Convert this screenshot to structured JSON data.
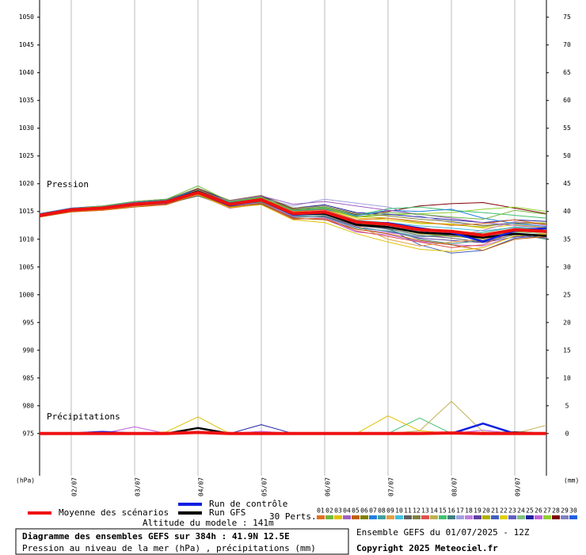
{
  "chart_data": {
    "type": "line",
    "title": "Diagramme des ensembles GEFS sur 384h : 41.9N 12.5E",
    "subtitle": "Pression au niveau de la mer (hPa) , précipitations (mm)",
    "run_info": "Ensemble GEFS du 01/07/2025 - 12Z",
    "copyright": "Copyright 2025 Meteociel.fr",
    "altitude": "Altitude du modele : 141m",
    "pressure_label": "Pression",
    "precip_label": "Précipitations",
    "y_label": "(hPa)",
    "y2_label": "(mm)",
    "perts_label": "30 Perts.",
    "x": [
      1.5,
      2,
      2.5,
      3,
      3.5,
      4,
      4.5,
      5,
      5.5,
      6,
      6.5,
      7,
      7.5,
      8,
      8.5,
      9,
      9.5
    ],
    "xlim": [
      1.5,
      9.5
    ],
    "xticks": [
      {
        "value": 2,
        "label": "02/07"
      },
      {
        "value": 3,
        "label": "03/07"
      },
      {
        "value": 4,
        "label": "04/07"
      },
      {
        "value": 5,
        "label": "05/07"
      },
      {
        "value": 6,
        "label": "06/07"
      },
      {
        "value": 7,
        "label": "07/07"
      },
      {
        "value": 8,
        "label": "08/07"
      },
      {
        "value": 9,
        "label": "09/07"
      }
    ],
    "ylim": [
      967.4,
      1053.1
    ],
    "yticks": [
      975,
      980,
      985,
      990,
      995,
      1000,
      1005,
      1010,
      1015,
      1020,
      1025,
      1030,
      1035,
      1040,
      1045,
      1050
    ],
    "y2lim": [
      -7.6,
      78.1
    ],
    "y2ticks": [
      0,
      5,
      10,
      15,
      20,
      25,
      30,
      35,
      40,
      45,
      50,
      55,
      60,
      65,
      70,
      75
    ],
    "grid": true,
    "series": [
      {
        "name": "Moyenne des scénarios",
        "color": "#ee1111",
        "width": 4,
        "values": [
          1014.3,
          1015.3,
          1015.6,
          1016.3,
          1016.7,
          1018.4,
          1016.3,
          1017.1,
          1014.6,
          1014.9,
          1013.1,
          1012.7,
          1011.7,
          1011.4,
          1010.7,
          1011.7,
          1011.4
        ],
        "precip": [
          0,
          0,
          0,
          0,
          0,
          0.2,
          0,
          0,
          0,
          0,
          0,
          0,
          0,
          0.1,
          0,
          0,
          0
        ]
      },
      {
        "name": "Run de contrôle",
        "color": "#1020e0",
        "width": 2.5,
        "values": [
          1014.3,
          1015.3,
          1015.6,
          1016.2,
          1016.6,
          1018.3,
          1016.1,
          1017.0,
          1014.4,
          1014.8,
          1013.0,
          1012.9,
          1012.0,
          1011.2,
          1009.6,
          1011.5,
          1012.0
        ],
        "precip": [
          0,
          0,
          0.3,
          0,
          0,
          0.2,
          0,
          0.1,
          0,
          0,
          0,
          0,
          0.1,
          0,
          1.8,
          0,
          0
        ]
      },
      {
        "name": "Run GFS",
        "color": "#000000",
        "width": 2.5,
        "values": [
          1014.2,
          1015.2,
          1015.6,
          1016.4,
          1016.8,
          1018.6,
          1016.4,
          1017.2,
          1014.5,
          1014.6,
          1012.6,
          1012.2,
          1011.2,
          1010.9,
          1010.3,
          1011.0,
          1010.6
        ],
        "precip": [
          0,
          0,
          0,
          0,
          0,
          1.0,
          0,
          0,
          0,
          0,
          0,
          0,
          0,
          0,
          0,
          0.2,
          0
        ]
      },
      {
        "name": "01",
        "color": "#e07020",
        "width": 1,
        "values": [
          1014.1,
          1015.0,
          1015.2,
          1016.0,
          1016.2,
          1019.0,
          1016.5,
          1017.4,
          1015.0,
          1015.3,
          1013.5,
          1013.8,
          1013.2,
          1012.5,
          1012.8,
          1013.5,
          1012.6
        ]
      },
      {
        "name": "02",
        "color": "#70b840",
        "width": 1,
        "values": [
          1014.5,
          1015.5,
          1016.0,
          1016.8,
          1017.2,
          1019.6,
          1016.8,
          1017.6,
          1015.2,
          1015.6,
          1014.0,
          1014.8,
          1014.5,
          1014.0,
          1013.6,
          1015.2,
          1014.5
        ]
      },
      {
        "name": "03",
        "color": "#e0c000",
        "width": 1,
        "values": [
          1014.2,
          1015.1,
          1015.3,
          1016.1,
          1016.5,
          1018.0,
          1015.7,
          1016.2,
          1013.5,
          1013.0,
          1011.0,
          1009.5,
          1008.2,
          1007.8,
          1008.5,
          1010.6,
          1011.0
        ],
        "precip": [
          0,
          0,
          0,
          0,
          0.3,
          3.0,
          0,
          0,
          0,
          0,
          0,
          3.2,
          0.5,
          0,
          0,
          0,
          0.2
        ]
      },
      {
        "name": "04",
        "color": "#a060c0",
        "width": 1,
        "values": [
          1014.4,
          1015.4,
          1015.7,
          1016.6,
          1016.9,
          1018.6,
          1016.9,
          1017.8,
          1016.3,
          1016.8,
          1016.0,
          1015.2,
          1014.5,
          1013.8,
          1013.0,
          1012.5,
          1012.0
        ]
      },
      {
        "name": "05",
        "color": "#c06000",
        "width": 1,
        "values": [
          1014.0,
          1014.9,
          1015.2,
          1015.8,
          1016.2,
          1018.1,
          1015.8,
          1016.5,
          1013.8,
          1013.5,
          1011.8,
          1011.0,
          1009.8,
          1009.0,
          1008.0,
          1010.0,
          1010.5
        ]
      },
      {
        "name": "06",
        "color": "#808000",
        "width": 1,
        "values": [
          1014.3,
          1015.2,
          1015.8,
          1016.4,
          1016.5,
          1018.2,
          1016.2,
          1016.8,
          1014.4,
          1014.7,
          1012.9,
          1012.3,
          1011.0,
          1010.5,
          1010.2,
          1011.4,
          1011.3
        ]
      },
      {
        "name": "07",
        "color": "#2080e0",
        "width": 1,
        "values": [
          1014.6,
          1015.6,
          1015.9,
          1016.7,
          1017.0,
          1018.9,
          1016.6,
          1017.3,
          1015.1,
          1015.4,
          1014.2,
          1015.2,
          1015.0,
          1015.4,
          1013.8,
          1012.8,
          1012.3
        ]
      },
      {
        "name": "08",
        "color": "#40a0a0",
        "width": 1,
        "values": [
          1014.1,
          1015.1,
          1015.4,
          1016.2,
          1016.6,
          1018.3,
          1016.0,
          1016.9,
          1014.2,
          1014.0,
          1012.0,
          1011.5,
          1010.5,
          1010.8,
          1011.2,
          1012.2,
          1011.8
        ]
      },
      {
        "name": "09",
        "color": "#e0a040",
        "width": 1,
        "values": [
          1014.2,
          1015.3,
          1015.5,
          1016.5,
          1016.9,
          1018.7,
          1016.5,
          1017.2,
          1014.8,
          1014.6,
          1012.5,
          1010.0,
          1008.8,
          1009.5,
          1010.0,
          1011.0,
          1010.8
        ]
      },
      {
        "name": "10",
        "color": "#40c0e0",
        "width": 1,
        "values": [
          1014.4,
          1015.2,
          1015.6,
          1016.3,
          1016.8,
          1018.4,
          1016.4,
          1017.0,
          1014.7,
          1015.1,
          1013.4,
          1013.0,
          1012.4,
          1012.0,
          1011.5,
          1012.1,
          1011.6
        ]
      },
      {
        "name": "11",
        "color": "#606060",
        "width": 1,
        "values": [
          1014.3,
          1015.4,
          1015.7,
          1016.1,
          1016.4,
          1017.8,
          1015.9,
          1016.4,
          1013.9,
          1014.2,
          1012.4,
          1011.9,
          1010.7,
          1010.2,
          1009.5,
          1010.8,
          1010.2
        ]
      },
      {
        "name": "12",
        "color": "#808040",
        "width": 1,
        "values": [
          1014.5,
          1015.5,
          1015.8,
          1016.6,
          1017.1,
          1019.2,
          1017.0,
          1017.9,
          1015.6,
          1016.0,
          1014.6,
          1014.2,
          1013.6,
          1013.2,
          1012.4,
          1012.9,
          1012.8
        ]
      },
      {
        "name": "13",
        "color": "#e05050",
        "width": 1,
        "values": [
          1014.0,
          1015.0,
          1015.3,
          1016.0,
          1016.4,
          1018.0,
          1015.6,
          1016.3,
          1013.6,
          1013.8,
          1011.5,
          1010.5,
          1009.5,
          1008.5,
          1009.0,
          1011.5,
          1011.2
        ]
      },
      {
        "name": "14",
        "color": "#c0b050",
        "width": 1,
        "values": [
          1014.3,
          1015.3,
          1015.6,
          1016.4,
          1016.7,
          1018.5,
          1016.4,
          1017.1,
          1014.6,
          1015.0,
          1013.2,
          1012.8,
          1011.8,
          1011.6,
          1011.0,
          1011.9,
          1011.5
        ],
        "precip": [
          0,
          0,
          0,
          0,
          0,
          0,
          0,
          0,
          0,
          0,
          0,
          0,
          0.5,
          5.8,
          0.3,
          0,
          1.5
        ]
      },
      {
        "name": "15",
        "color": "#40c070",
        "width": 1,
        "values": [
          1014.6,
          1015.4,
          1015.9,
          1016.5,
          1017.0,
          1018.8,
          1016.7,
          1017.5,
          1015.3,
          1015.8,
          1014.3,
          1015.5,
          1015.8,
          1015.2,
          1014.8,
          1014.3,
          1013.8
        ],
        "precip": [
          0,
          0,
          0,
          0,
          0,
          0,
          0,
          0,
          0,
          0,
          0,
          0,
          2.8,
          0,
          0,
          0,
          0
        ]
      },
      {
        "name": "16",
        "color": "#408080",
        "width": 1,
        "values": [
          1014.2,
          1015.2,
          1015.5,
          1016.2,
          1016.6,
          1018.3,
          1016.1,
          1016.7,
          1014.3,
          1014.4,
          1012.6,
          1011.8,
          1010.0,
          1009.2,
          1009.8,
          1011.0,
          1010.0
        ]
      },
      {
        "name": "17",
        "color": "#a0a0e0",
        "width": 1,
        "values": [
          1014.4,
          1015.3,
          1015.7,
          1016.4,
          1016.8,
          1018.6,
          1016.5,
          1017.4,
          1016.0,
          1017.2,
          1016.5,
          1015.8,
          1014.2,
          1013.0,
          1012.5,
          1013.0,
          1012.2
        ]
      },
      {
        "name": "18",
        "color": "#c080e0",
        "width": 1,
        "values": [
          1014.3,
          1015.1,
          1015.5,
          1016.3,
          1016.6,
          1018.2,
          1016.0,
          1016.6,
          1014.1,
          1013.9,
          1011.8,
          1011.2,
          1010.4,
          1010.6,
          1011.6,
          1013.2,
          1012.5
        ]
      },
      {
        "name": "19",
        "color": "#6040a0",
        "width": 1,
        "values": [
          1014.1,
          1015.0,
          1015.4,
          1016.1,
          1016.5,
          1018.1,
          1015.9,
          1016.6,
          1014.0,
          1014.1,
          1012.2,
          1011.4,
          1010.2,
          1009.8,
          1009.4,
          1010.4,
          1010.9
        ]
      },
      {
        "name": "20",
        "color": "#b0b000",
        "width": 1,
        "values": [
          1014.5,
          1015.4,
          1015.8,
          1016.6,
          1017.0,
          1018.7,
          1016.8,
          1017.6,
          1015.3,
          1015.7,
          1014.1,
          1013.8,
          1013.0,
          1012.6,
          1012.2,
          1013.1,
          1012.9
        ]
      },
      {
        "name": "21",
        "color": "#4060c0",
        "width": 1,
        "values": [
          1014.2,
          1015.2,
          1015.5,
          1016.3,
          1016.7,
          1018.4,
          1016.2,
          1016.9,
          1014.5,
          1014.8,
          1012.8,
          1012.0,
          1009.0,
          1007.5,
          1008.0,
          1010.2,
          1010.7
        ]
      },
      {
        "name": "22",
        "color": "#e0d000",
        "width": 1,
        "values": [
          1014.4,
          1015.5,
          1015.8,
          1016.5,
          1016.9,
          1018.8,
          1016.6,
          1017.3,
          1014.9,
          1015.4,
          1013.8,
          1013.5,
          1012.8,
          1012.8,
          1012.0,
          1012.6,
          1012.1
        ]
      },
      {
        "name": "23",
        "color": "#6060c0",
        "width": 1,
        "values": [
          1014.3,
          1015.3,
          1015.6,
          1016.3,
          1016.7,
          1018.5,
          1016.3,
          1017.0,
          1014.6,
          1014.9,
          1013.0,
          1012.5,
          1011.5,
          1011.1,
          1010.5,
          1011.6,
          1011.2
        ]
      },
      {
        "name": "24",
        "color": "#80c080",
        "width": 1,
        "values": [
          1014.1,
          1015.1,
          1015.4,
          1016.2,
          1016.5,
          1018.3,
          1016.1,
          1016.8,
          1014.3,
          1014.6,
          1012.7,
          1012.0,
          1011.0,
          1010.6,
          1010.0,
          1011.3,
          1011.0
        ]
      },
      {
        "name": "25",
        "color": "#2020a0",
        "width": 1,
        "values": [
          1014.6,
          1015.6,
          1016.0,
          1016.8,
          1017.2,
          1019.0,
          1016.9,
          1017.8,
          1015.6,
          1016.2,
          1014.8,
          1014.5,
          1014.0,
          1013.5,
          1013.0,
          1013.5,
          1013.2
        ],
        "precip": [
          0,
          0,
          0,
          0,
          0,
          0,
          0,
          1.6,
          0,
          0,
          0,
          0,
          0,
          0,
          0,
          0,
          0
        ]
      },
      {
        "name": "26",
        "color": "#c060e0",
        "width": 1,
        "values": [
          1014.2,
          1015.0,
          1015.4,
          1016.0,
          1016.3,
          1017.9,
          1015.7,
          1016.3,
          1013.7,
          1013.6,
          1011.3,
          1010.8,
          1009.6,
          1009.0,
          1008.8,
          1010.5,
          1010.3
        ],
        "precip": [
          0,
          0,
          0,
          1.2,
          0,
          0,
          0,
          0.4,
          0,
          0,
          0,
          0,
          0,
          0,
          0.6,
          0,
          0
        ]
      },
      {
        "name": "27",
        "color": "#90d030",
        "width": 1,
        "values": [
          1014.5,
          1015.4,
          1015.8,
          1016.6,
          1016.9,
          1018.9,
          1016.7,
          1017.5,
          1015.2,
          1015.5,
          1014.0,
          1014.4,
          1014.6,
          1014.8,
          1015.4,
          1015.8,
          1015.0
        ]
      },
      {
        "name": "28",
        "color": "#800000",
        "width": 1,
        "values": [
          1014.4,
          1015.5,
          1015.9,
          1016.7,
          1017.1,
          1019.1,
          1016.9,
          1017.7,
          1015.4,
          1015.8,
          1014.4,
          1015.0,
          1016.0,
          1016.4,
          1016.6,
          1015.6,
          1014.6
        ]
      },
      {
        "name": "29",
        "color": "#8080c0",
        "width": 1,
        "values": [
          1014.3,
          1015.2,
          1015.6,
          1016.3,
          1016.6,
          1018.4,
          1016.3,
          1017.0,
          1014.5,
          1014.8,
          1013.1,
          1012.6,
          1011.6,
          1011.3,
          1010.6,
          1011.6,
          1011.3
        ]
      },
      {
        "name": "30",
        "color": "#2060e0",
        "width": 1,
        "values": [
          1014.2,
          1015.3,
          1015.5,
          1016.4,
          1016.8,
          1018.5,
          1016.4,
          1017.1,
          1014.7,
          1014.9,
          1013.2,
          1012.7,
          1011.9,
          1011.5,
          1010.8,
          1011.8,
          1011.5
        ]
      }
    ]
  }
}
